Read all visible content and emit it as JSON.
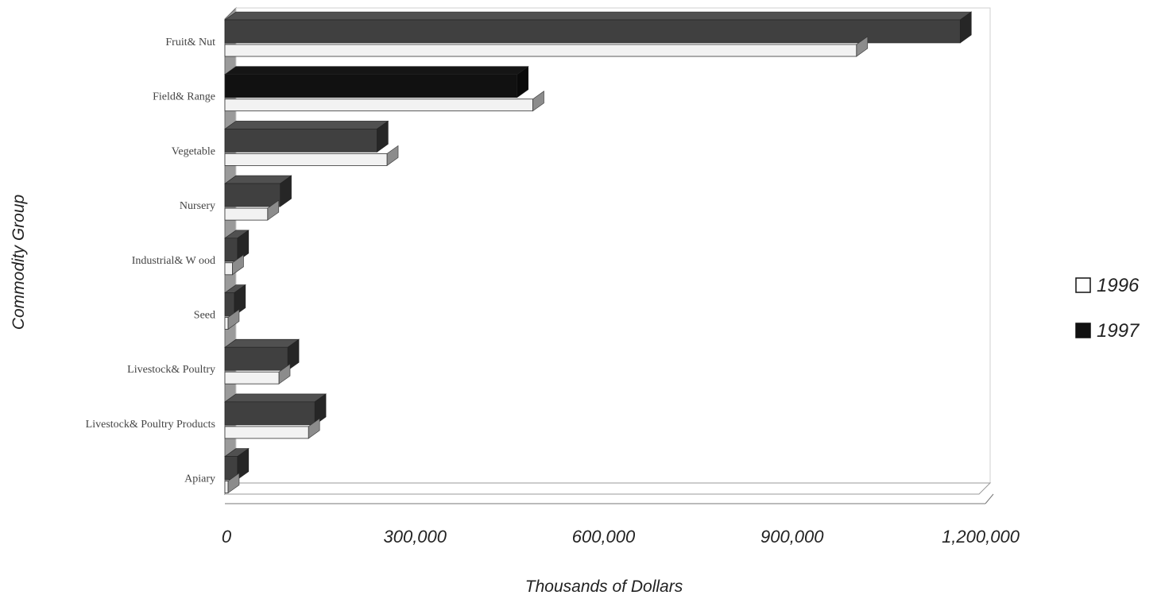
{
  "chart_data": {
    "type": "bar",
    "orientation": "horizontal",
    "ylabel": "Commodity Group",
    "xlabel": "Thousands of Dollars",
    "categories": [
      "Fruit& Nut",
      "Field& Range",
      "Vegetable",
      "Nursery",
      "Industrial& W ood",
      "Seed",
      "Livestock& Poultry",
      "Livestock& Poultry Products",
      "Apiary"
    ],
    "series": [
      {
        "name": "1996",
        "color": "#f2f2f2",
        "values": [
          1005000,
          490000,
          258000,
          68000,
          12000,
          5000,
          86000,
          133000,
          5000
        ]
      },
      {
        "name": "1997",
        "color": "#404040",
        "values": [
          1170000,
          465000,
          242000,
          88000,
          20000,
          15000,
          100000,
          143000,
          20000
        ]
      }
    ],
    "highlight": {
      "category": "Field& Range",
      "series": "1997",
      "color": "#111111"
    },
    "xlim": [
      0,
      1200000
    ],
    "xticks": [
      0,
      300000,
      600000,
      900000,
      1200000
    ],
    "xtick_labels": [
      "0",
      "300,000",
      "600,000",
      "900,000",
      "1,200,000"
    ],
    "legend": {
      "position": "right",
      "items": [
        {
          "label": "1996",
          "swatch": "#ffffff"
        },
        {
          "label": "1997",
          "swatch": "#111111"
        }
      ]
    },
    "grid": false,
    "style": "3d"
  }
}
